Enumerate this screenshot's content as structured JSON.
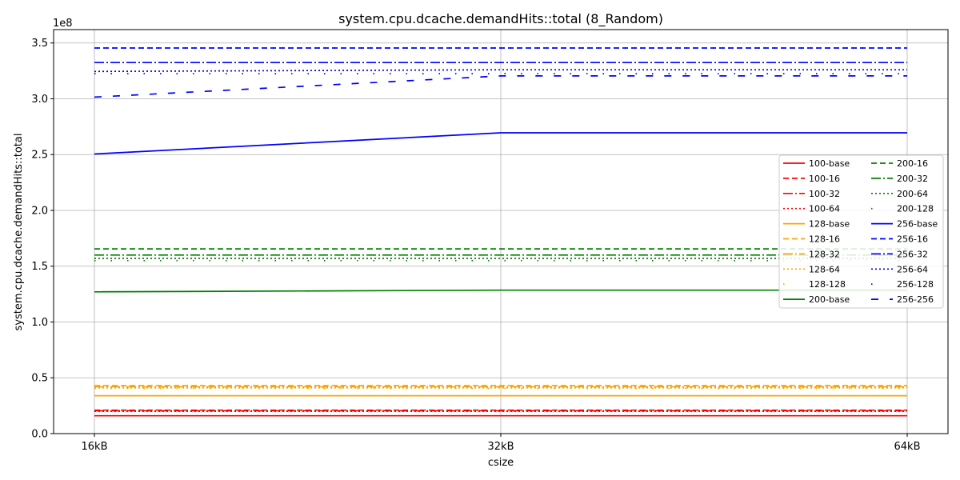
{
  "chart_data": {
    "type": "line",
    "title": "system.cpu.dcache.demandHits::total (8_Random)",
    "xlabel": "csize",
    "ylabel": "system.cpu.dcache.demandHits::total",
    "y_multiplier_label": "1e8",
    "categories": [
      "16kB",
      "32kB",
      "64kB"
    ],
    "ylim": [
      0,
      3.62
    ],
    "yticks": [
      "0.0",
      "0.5",
      "1.0",
      "1.5",
      "2.0",
      "2.5",
      "3.0",
      "3.5"
    ],
    "grid": true,
    "legend_position": "right",
    "series": [
      {
        "name": "100-base",
        "color": "#ff0000",
        "dash": "solid",
        "values": [
          0.16,
          0.16,
          0.16
        ]
      },
      {
        "name": "100-16",
        "color": "#ff0000",
        "dash": "dashed",
        "values": [
          0.21,
          0.21,
          0.21
        ]
      },
      {
        "name": "100-32",
        "color": "#ff0000",
        "dash": "dashdot",
        "values": [
          0.205,
          0.205,
          0.205
        ]
      },
      {
        "name": "100-64",
        "color": "#ff0000",
        "dash": "dotted",
        "values": [
          0.2,
          0.2,
          0.2
        ]
      },
      {
        "name": "128-base",
        "color": "#ffa500",
        "dash": "solid",
        "values": [
          0.34,
          0.34,
          0.34
        ]
      },
      {
        "name": "128-16",
        "color": "#ffa500",
        "dash": "dashed",
        "values": [
          0.43,
          0.43,
          0.43
        ]
      },
      {
        "name": "128-32",
        "color": "#ffa500",
        "dash": "dashdot",
        "values": [
          0.42,
          0.42,
          0.42
        ]
      },
      {
        "name": "128-64",
        "color": "#ffa500",
        "dash": "dotted",
        "values": [
          0.41,
          0.41,
          0.41
        ]
      },
      {
        "name": "128-128",
        "color": "#ffa500",
        "dash": "sparse",
        "values": [
          0.405,
          0.405,
          0.405
        ]
      },
      {
        "name": "200-base",
        "color": "#008000",
        "dash": "solid",
        "values": [
          1.27,
          1.285,
          1.285
        ]
      },
      {
        "name": "200-16",
        "color": "#008000",
        "dash": "dashed",
        "values": [
          1.655,
          1.655,
          1.655
        ]
      },
      {
        "name": "200-32",
        "color": "#008000",
        "dash": "dashdot",
        "values": [
          1.6,
          1.6,
          1.6
        ]
      },
      {
        "name": "200-64",
        "color": "#008000",
        "dash": "dotted",
        "values": [
          1.57,
          1.57,
          1.57
        ]
      },
      {
        "name": "200-128",
        "color": "#008000",
        "dash": "sparse",
        "values": [
          1.55,
          1.55,
          1.55
        ]
      },
      {
        "name": "256-base",
        "color": "#0000ff",
        "dash": "solid",
        "values": [
          2.505,
          2.695,
          2.695
        ]
      },
      {
        "name": "256-16",
        "color": "#0000ff",
        "dash": "dashed",
        "values": [
          3.455,
          3.455,
          3.455
        ]
      },
      {
        "name": "256-32",
        "color": "#0000ff",
        "dash": "dashdot",
        "values": [
          3.325,
          3.325,
          3.325
        ]
      },
      {
        "name": "256-64",
        "color": "#0000ff",
        "dash": "dotted",
        "values": [
          3.245,
          3.26,
          3.26
        ]
      },
      {
        "name": "256-128",
        "color": "#0000ff",
        "dash": "sparse",
        "values": [
          3.225,
          3.225,
          3.225
        ]
      },
      {
        "name": "256-256",
        "color": "#0000ff",
        "dash": "loose",
        "values": [
          3.015,
          3.205,
          3.205
        ]
      }
    ]
  }
}
